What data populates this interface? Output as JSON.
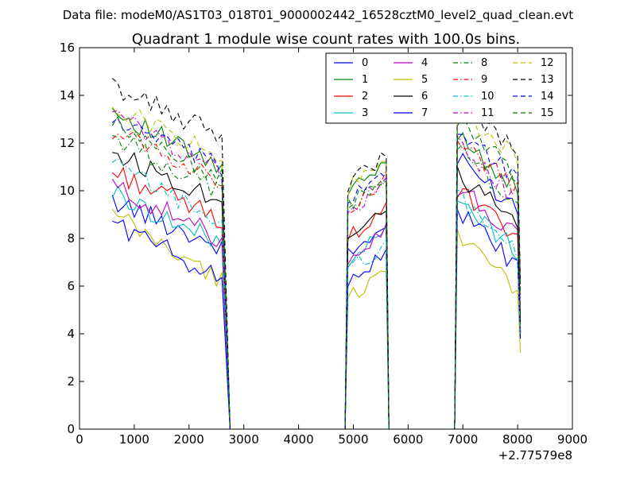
{
  "figure": {
    "suptitle": "Data file: modeM0/AS1T03_018T01_9000002442_16528cztM0_level2_quad_clean.evt",
    "offset_label": "+2.77579e8"
  },
  "chart_data": {
    "type": "line",
    "title": "Quadrant 1 module wise count rates with 100.0s bins.",
    "xlabel": "",
    "ylabel": "",
    "xlim": [
      0,
      9000
    ],
    "ylim": [
      0,
      16
    ],
    "xticks": [
      0,
      1000,
      2000,
      3000,
      4000,
      5000,
      6000,
      7000,
      8000,
      9000
    ],
    "yticks": [
      0,
      2,
      4,
      6,
      8,
      10,
      12,
      14,
      16
    ],
    "legend_position": "top-right",
    "segments": [
      {
        "start": 600,
        "end": 2600,
        "step": 100
      },
      {
        "start": 4900,
        "end": 5600,
        "step": 100
      },
      {
        "start": 6900,
        "end": 8000,
        "step": 100
      }
    ],
    "drop_end": 2750,
    "rise_start": 4850,
    "drop2_end": 5650,
    "rise2_start": 6850,
    "tail_x": 8050,
    "series": [
      {
        "name": "0",
        "color": "#0000ff",
        "dash": "solid",
        "levels": [
          9.6,
          7.9,
          11.3
        ],
        "trend": 0.25,
        "tail": 4.0
      },
      {
        "name": "1",
        "color": "#008000",
        "dash": "solid",
        "levels": [
          13.4,
          10.5,
          12.5
        ],
        "trend": 0.32,
        "tail": 4.5
      },
      {
        "name": "2",
        "color": "#ff0000",
        "dash": "solid",
        "levels": [
          10.8,
          8.6,
          10.0
        ],
        "trend": 0.25,
        "tail": 4.2
      },
      {
        "name": "3",
        "color": "#00bfbf",
        "dash": "solid",
        "levels": [
          9.9,
          7.7,
          9.6
        ],
        "trend": 0.27,
        "tail": 4.0
      },
      {
        "name": "4",
        "color": "#bf00bf",
        "dash": "solid",
        "levels": [
          10.2,
          7.8,
          10.2
        ],
        "trend": 0.28,
        "tail": 4.1
      },
      {
        "name": "5",
        "color": "#bfbf00",
        "dash": "solid",
        "levels": [
          9.0,
          6.1,
          8.4
        ],
        "trend": 0.35,
        "tail": 3.2
      },
      {
        "name": "6",
        "color": "#000000",
        "dash": "solid",
        "levels": [
          11.6,
          8.8,
          10.6
        ],
        "trend": 0.25,
        "tail": 4.4
      },
      {
        "name": "7",
        "color": "#0000ff",
        "dash": "solid",
        "levels": [
          8.7,
          6.8,
          9.2
        ],
        "trend": 0.3,
        "tail": 3.8
      },
      {
        "name": "8",
        "color": "#008000",
        "dash": "dashdot",
        "levels": [
          12.3,
          9.9,
          11.8
        ],
        "trend": 0.3,
        "tail": 5.6
      },
      {
        "name": "9",
        "color": "#ff0000",
        "dash": "dashdot",
        "levels": [
          12.6,
          9.9,
          12.2
        ],
        "trend": 0.28,
        "tail": 5.0
      },
      {
        "name": "10",
        "color": "#00bfbf",
        "dash": "dashdot",
        "levels": [
          11.1,
          7.2,
          9.8
        ],
        "trend": 0.3,
        "tail": 4.0
      },
      {
        "name": "11",
        "color": "#bf00bf",
        "dash": "dashdot",
        "levels": [
          13.2,
          9.7,
          12.0
        ],
        "trend": 0.3,
        "tail": 5.5
      },
      {
        "name": "12",
        "color": "#bfbf00",
        "dash": "dashed",
        "levels": [
          13.6,
          10.7,
          13.5
        ],
        "trend": 0.28,
        "tail": 5.8
      },
      {
        "name": "13",
        "color": "#000000",
        "dash": "dashed",
        "levels": [
          14.4,
          10.9,
          13.8
        ],
        "trend": 0.27,
        "tail": 6.1
      },
      {
        "name": "14",
        "color": "#0000ff",
        "dash": "dashed",
        "levels": [
          13.0,
          10.2,
          12.6
        ],
        "trend": 0.26,
        "tail": 5.9
      },
      {
        "name": "15",
        "color": "#008000",
        "dash": "dashed",
        "levels": [
          12.8,
          10.0,
          12.9
        ],
        "trend": 0.28,
        "tail": 5.7
      }
    ]
  }
}
